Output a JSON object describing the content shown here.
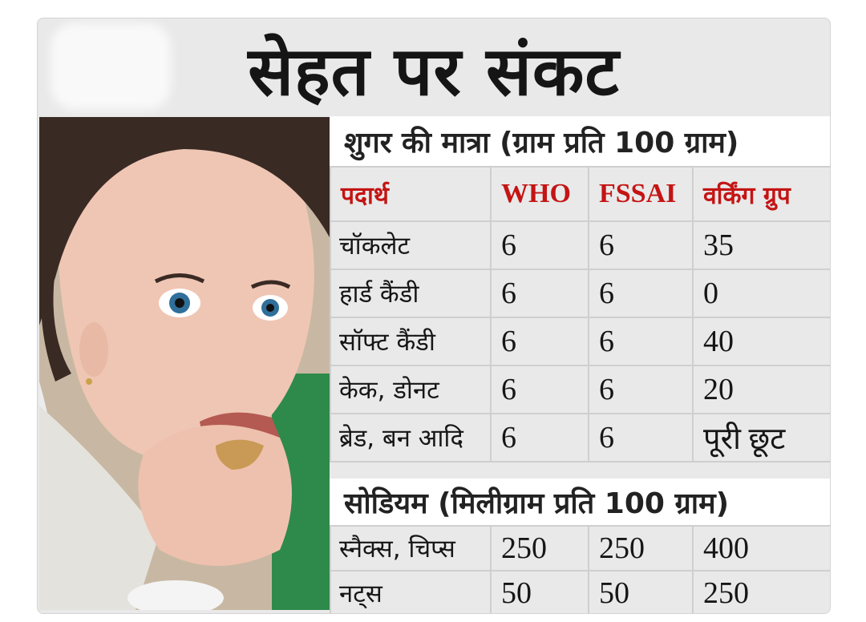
{
  "headline": "सेहत पर संकट",
  "sugar": {
    "title": "शुगर की मात्रा (ग्राम प्रति 100 ग्राम)",
    "columns": [
      "पदार्थ",
      "WHO",
      "FSSAI",
      "वर्किंग ग्रुप"
    ],
    "rows": [
      {
        "item": "चॉकलेट",
        "who": "6",
        "fssai": "6",
        "wg": "35"
      },
      {
        "item": "हार्ड कैंडी",
        "who": "6",
        "fssai": "6",
        "wg": "0"
      },
      {
        "item": "सॉफ्ट कैंडी",
        "who": "6",
        "fssai": "6",
        "wg": "40"
      },
      {
        "item": "केक, डोनट",
        "who": "6",
        "fssai": "6",
        "wg": "20"
      },
      {
        "item": "ब्रेड, बन आदि",
        "who": "6",
        "fssai": "6",
        "wg": "पूरी छूट"
      }
    ]
  },
  "sodium": {
    "title": "सोडियम (मिलीग्राम प्रति 100 ग्राम)",
    "rows": [
      {
        "item": "स्नैक्स, चिप्स",
        "who": "250",
        "fssai": "250",
        "wg": "400"
      },
      {
        "item": "नट्स",
        "who": "50",
        "fssai": "50",
        "wg": "250"
      }
    ]
  },
  "colors": {
    "header_red": "#c41414",
    "card_bg": "#e9e9e9",
    "section_bg": "#ffffff"
  }
}
